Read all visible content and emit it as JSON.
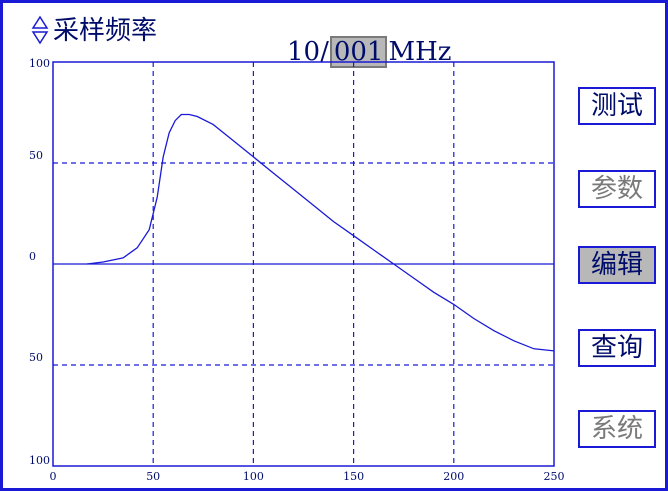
{
  "header": {
    "param_name": "采样频率",
    "freq_prefix": "10/",
    "freq_editing": "001",
    "freq_unit": "MHz",
    "param_arrow_icon": "up-down-arrow-icon"
  },
  "menu": [
    {
      "label": "测试",
      "state": "active"
    },
    {
      "label": "参数",
      "state": "dim"
    },
    {
      "label": "编辑",
      "state": "selected"
    },
    {
      "label": "查询",
      "state": "active"
    },
    {
      "label": "系统",
      "state": "dim"
    }
  ],
  "colors": {
    "frame": "#1a1ad6",
    "trace": "#1a1ad6",
    "grid": "#1a1ad6",
    "text": "#000c6a",
    "highlight": "#b8b8b8",
    "dim_text": "#7a7a7a"
  },
  "chart_data": {
    "type": "line",
    "xlim": [
      0,
      250
    ],
    "ylim": [
      -100,
      100
    ],
    "x_ticks": [
      0,
      50,
      100,
      150,
      200,
      250
    ],
    "y_ticks": [
      100,
      50,
      0,
      -50,
      -100
    ],
    "y_tick_labels": [
      "100",
      "50",
      "0",
      "50",
      "100"
    ],
    "grid": true,
    "series": [
      {
        "x": [
          17,
          25,
          35,
          42,
          48,
          52,
          55,
          58,
          61,
          64,
          68,
          72,
          80,
          90,
          100,
          110,
          120,
          130,
          140,
          150,
          160,
          170,
          180,
          190,
          200,
          210,
          220,
          230,
          240,
          250
        ],
        "values": [
          0,
          1,
          3,
          8,
          17,
          33,
          53,
          65,
          71,
          74,
          74,
          73,
          69,
          61,
          53,
          45,
          37,
          29,
          21,
          14,
          7,
          0,
          -7,
          -14,
          -20,
          -27,
          -33,
          -38,
          -42,
          -43
        ]
      }
    ]
  }
}
